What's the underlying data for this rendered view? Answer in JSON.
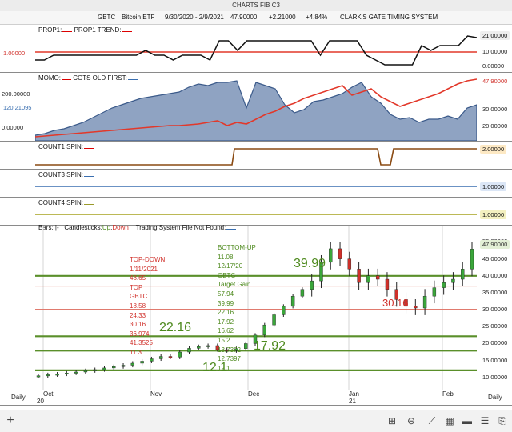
{
  "window": {
    "title": "CHARTS FIB C3"
  },
  "header": {
    "symbol": "GBTC",
    "name": "Bitcoin ETF",
    "range": "9/30/2020 - 2/9/2021",
    "price": "47.90000",
    "change": "+2.21000",
    "pct": "+4.84%",
    "system": "CLARK'S GATE TIMING SYSTEM"
  },
  "panes": {
    "prop": {
      "label1": "PROP1:",
      "label2": "PROP1 TREND:",
      "left_value": "1.00000",
      "right_value": "1.00000",
      "yticks": [
        "21.00000",
        "10.00000",
        "0.00000"
      ]
    },
    "momo": {
      "label1": "MOMO:",
      "label2": "CGTS OLD FIRST:",
      "left_ticks": [
        "200.00000",
        "0.00000"
      ],
      "left_value": "120.21095",
      "right_value": "47.90000",
      "yticks": [
        "30.00000",
        "20.00000"
      ]
    },
    "count1": {
      "label": "COUNT1 SPIN:",
      "right_value": "2.00000"
    },
    "count3": {
      "label": "COUNT3 SPIN:",
      "right_value": "1.00000"
    },
    "count4": {
      "label": "COUNT4 SPIN:",
      "right_value": "1.00000"
    },
    "bars": {
      "label_bars": "Bars:",
      "bars_val": "|-",
      "label_candles": "Candlesticks:",
      "up": "Up",
      "down": "Down",
      "label_ts": "Trading System File Not Found:",
      "right_value": "47.90000",
      "yticks": [
        "50.00000",
        "45.00000",
        "40.00000",
        "35.00000",
        "30.00000",
        "25.00000",
        "20.00000",
        "15.00000",
        "10.00000"
      ]
    }
  },
  "annotations": {
    "topdown": [
      "TOP-DOWN",
      "1/11/2021",
      "48.65",
      "TOP",
      "GBTC",
      "18.58",
      "24.33",
      "30.16",
      "36.974",
      "41.3525",
      "11.3"
    ],
    "bottomup": [
      "BOTTOM-UP",
      "11.08",
      "12/17/20",
      "GBTC",
      "Target Gain",
      "57.94",
      "39.99",
      "22.16",
      "17.92",
      "16.62",
      "15.2",
      "13.7372",
      "12.7397",
      "12.1"
    ],
    "big": {
      "v3999": "39.99",
      "v2216": "22.16",
      "v1792": "17.92",
      "v121": "12.1",
      "v3016": "30.16"
    }
  },
  "xaxis": {
    "left": "Daily",
    "right": "Daily",
    "months": [
      "Oct",
      "Nov",
      "Dec",
      "Jan",
      "Feb"
    ],
    "years": [
      "20",
      "21"
    ]
  },
  "toolbar": {
    "add": "+",
    "icons": [
      "grid-icon",
      "back-icon",
      "line-chart-icon",
      "bar-chart-icon",
      "panel-icon",
      "list-icon",
      "book-icon"
    ]
  },
  "chart_data": {
    "type": "candlestick",
    "title": "GBTC Bitcoin ETF",
    "x_range": [
      "9/30/2020",
      "2/9/2021"
    ],
    "ylim": [
      9,
      52
    ],
    "fib_levels_green": [
      39.99,
      22.16,
      17.92,
      12.1
    ],
    "fib_levels_red": [
      36.974,
      30.16
    ],
    "last_close": 47.9,
    "series": [
      {
        "name": "close",
        "values": [
          10.5,
          10.8,
          11.0,
          11.3,
          11.6,
          12.0,
          12.3,
          12.8,
          13.2,
          13.6,
          14.2,
          14.8,
          15.5,
          16.2,
          16.0,
          17.5,
          18.6,
          19.1,
          19.4,
          18.2,
          17.9,
          18.5,
          20.0,
          22.5,
          25.5,
          28.5,
          31.0,
          34.0,
          36.0,
          38.5,
          44.0,
          48.0,
          45.0,
          42.0,
          38.0,
          40.0,
          39.0,
          36.0,
          33.0,
          31.0,
          30.5,
          34.0,
          36.5,
          38.0,
          39.0,
          42.0,
          47.9
        ]
      }
    ]
  }
}
